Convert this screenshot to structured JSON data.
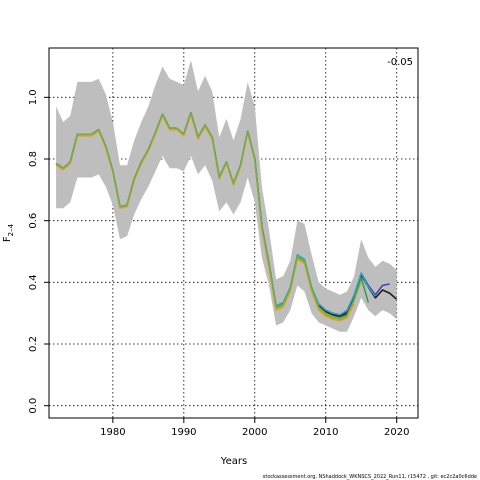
{
  "chart_data": {
    "type": "line",
    "title": "",
    "xlabel": "Years",
    "ylabel": "F",
    "ylabel_subscript": "2–4",
    "xlim": [
      1971,
      2023
    ],
    "ylim": [
      -0.04,
      1.16
    ],
    "grid": true,
    "x_ticks": [
      1980,
      1990,
      2000,
      2010,
      2020
    ],
    "x_tick_labels": [
      "1980",
      "1990",
      "2000",
      "2010",
      "2020"
    ],
    "y_ticks": [
      0.0,
      0.2,
      0.4,
      0.6,
      0.8,
      1.0
    ],
    "y_tick_labels": [
      "0.0",
      "0.2",
      "0.4",
      "0.6",
      "0.8",
      "1.0"
    ],
    "annotation": "-0.05",
    "footnote": "stockassessment.org, NShaddock_WKNSCS_2022_Run11, r15472 , git: ec2c2a0c6dde",
    "band_color": "#bebebe",
    "band": {
      "x": [
        1972,
        1973,
        1974,
        1975,
        1976,
        1977,
        1978,
        1979,
        1980,
        1981,
        1982,
        1983,
        1984,
        1985,
        1986,
        1987,
        1988,
        1989,
        1990,
        1991,
        1992,
        1993,
        1994,
        1995,
        1996,
        1997,
        1998,
        1999,
        2000,
        2001,
        2002,
        2003,
        2004,
        2005,
        2006,
        2007,
        2008,
        2009,
        2010,
        2011,
        2012,
        2013,
        2014,
        2015,
        2016,
        2017,
        2018,
        2019,
        2020
      ],
      "lower": [
        0.64,
        0.64,
        0.66,
        0.74,
        0.74,
        0.74,
        0.75,
        0.71,
        0.65,
        0.54,
        0.55,
        0.62,
        0.67,
        0.71,
        0.76,
        0.81,
        0.77,
        0.77,
        0.76,
        0.81,
        0.75,
        0.78,
        0.73,
        0.63,
        0.66,
        0.62,
        0.66,
        0.74,
        0.66,
        0.48,
        0.39,
        0.26,
        0.27,
        0.31,
        0.39,
        0.37,
        0.3,
        0.27,
        0.26,
        0.25,
        0.24,
        0.24,
        0.29,
        0.35,
        0.31,
        0.29,
        0.31,
        0.3,
        0.28
      ],
      "upper": [
        0.97,
        0.92,
        0.94,
        1.05,
        1.05,
        1.05,
        1.06,
        1.01,
        0.92,
        0.78,
        0.78,
        0.86,
        0.92,
        0.97,
        1.04,
        1.1,
        1.06,
        1.05,
        1.04,
        1.12,
        1.02,
        1.07,
        1.02,
        0.87,
        0.93,
        0.86,
        0.93,
        1.05,
        0.97,
        0.71,
        0.57,
        0.41,
        0.42,
        0.47,
        0.6,
        0.59,
        0.49,
        0.4,
        0.38,
        0.37,
        0.36,
        0.37,
        0.42,
        0.54,
        0.48,
        0.45,
        0.47,
        0.46,
        0.44
      ]
    },
    "series": [
      {
        "color": "#1f1f1f",
        "width": 1.6,
        "x": [
          1972,
          1973,
          1974,
          1975,
          1976,
          1977,
          1978,
          1979,
          1980,
          1981,
          1982,
          1983,
          1984,
          1985,
          1986,
          1987,
          1988,
          1989,
          1990,
          1991,
          1992,
          1993,
          1994,
          1995,
          1996,
          1997,
          1998,
          1999,
          2000,
          2001,
          2002,
          2003,
          2004,
          2005,
          2006,
          2007,
          2008,
          2009,
          2010,
          2011,
          2012,
          2013,
          2014,
          2015,
          2016,
          2017,
          2018,
          2019,
          2020
        ],
        "y": [
          0.785,
          0.77,
          0.79,
          0.88,
          0.88,
          0.88,
          0.895,
          0.84,
          0.76,
          0.645,
          0.65,
          0.735,
          0.79,
          0.83,
          0.885,
          0.945,
          0.9,
          0.9,
          0.88,
          0.95,
          0.87,
          0.91,
          0.87,
          0.74,
          0.79,
          0.72,
          0.78,
          0.89,
          0.8,
          0.58,
          0.46,
          0.32,
          0.33,
          0.38,
          0.485,
          0.47,
          0.38,
          0.325,
          0.305,
          0.295,
          0.29,
          0.3,
          0.35,
          0.425,
          0.385,
          0.35,
          0.375,
          0.365,
          0.345
        ]
      },
      {
        "color": "#3a3ab4",
        "width": 1.4,
        "x": [
          1972,
          1973,
          1974,
          1975,
          1976,
          1977,
          1978,
          1979,
          1980,
          1981,
          1982,
          1983,
          1984,
          1985,
          1986,
          1987,
          1988,
          1989,
          1990,
          1991,
          1992,
          1993,
          1994,
          1995,
          1996,
          1997,
          1998,
          1999,
          2000,
          2001,
          2002,
          2003,
          2004,
          2005,
          2006,
          2007,
          2008,
          2009,
          2010,
          2011,
          2012,
          2013,
          2014,
          2015,
          2016,
          2017,
          2018,
          2019
        ],
        "y": [
          0.785,
          0.77,
          0.79,
          0.88,
          0.88,
          0.88,
          0.895,
          0.84,
          0.76,
          0.645,
          0.65,
          0.735,
          0.79,
          0.83,
          0.885,
          0.945,
          0.9,
          0.9,
          0.88,
          0.95,
          0.87,
          0.91,
          0.87,
          0.74,
          0.79,
          0.72,
          0.78,
          0.89,
          0.8,
          0.58,
          0.46,
          0.32,
          0.33,
          0.38,
          0.485,
          0.47,
          0.38,
          0.33,
          0.31,
          0.3,
          0.295,
          0.305,
          0.355,
          0.43,
          0.39,
          0.36,
          0.39,
          0.395
        ]
      },
      {
        "color": "#2fa9c9",
        "width": 1.4,
        "x": [
          1972,
          1973,
          1974,
          1975,
          1976,
          1977,
          1978,
          1979,
          1980,
          1981,
          1982,
          1983,
          1984,
          1985,
          1986,
          1987,
          1988,
          1989,
          1990,
          1991,
          1992,
          1993,
          1994,
          1995,
          1996,
          1997,
          1998,
          1999,
          2000,
          2001,
          2002,
          2003,
          2004,
          2005,
          2006,
          2007,
          2008,
          2009,
          2010,
          2011,
          2012,
          2013,
          2014,
          2015,
          2016,
          2017
        ],
        "y": [
          0.785,
          0.77,
          0.79,
          0.88,
          0.88,
          0.88,
          0.895,
          0.84,
          0.76,
          0.645,
          0.65,
          0.735,
          0.79,
          0.83,
          0.885,
          0.945,
          0.9,
          0.9,
          0.88,
          0.95,
          0.87,
          0.91,
          0.87,
          0.74,
          0.79,
          0.72,
          0.78,
          0.89,
          0.8,
          0.58,
          0.46,
          0.325,
          0.335,
          0.385,
          0.49,
          0.475,
          0.385,
          0.33,
          0.31,
          0.3,
          0.295,
          0.31,
          0.36,
          0.43,
          0.385,
          0.355
        ]
      },
      {
        "color": "#2a9a4a",
        "width": 1.4,
        "x": [
          1972,
          1973,
          1974,
          1975,
          1976,
          1977,
          1978,
          1979,
          1980,
          1981,
          1982,
          1983,
          1984,
          1985,
          1986,
          1987,
          1988,
          1989,
          1990,
          1991,
          1992,
          1993,
          1994,
          1995,
          1996,
          1997,
          1998,
          1999,
          2000,
          2001,
          2002,
          2003,
          2004,
          2005,
          2006,
          2007,
          2008,
          2009,
          2010,
          2011,
          2012,
          2013,
          2014,
          2015,
          2016
        ],
        "y": [
          0.785,
          0.77,
          0.79,
          0.88,
          0.88,
          0.88,
          0.895,
          0.84,
          0.76,
          0.645,
          0.65,
          0.735,
          0.79,
          0.83,
          0.885,
          0.945,
          0.9,
          0.9,
          0.88,
          0.95,
          0.87,
          0.91,
          0.87,
          0.74,
          0.79,
          0.72,
          0.78,
          0.89,
          0.8,
          0.58,
          0.455,
          0.32,
          0.33,
          0.38,
          0.485,
          0.47,
          0.38,
          0.32,
          0.3,
          0.29,
          0.285,
          0.295,
          0.345,
          0.415,
          0.335
        ]
      },
      {
        "color": "#9aa83a",
        "width": 1.4,
        "x": [
          1972,
          1973,
          1974,
          1975,
          1976,
          1977,
          1978,
          1979,
          1980,
          1981,
          1982,
          1983,
          1984,
          1985,
          1986,
          1987,
          1988,
          1989,
          1990,
          1991,
          1992,
          1993,
          1994,
          1995,
          1996,
          1997,
          1998,
          1999,
          2000,
          2001,
          2002,
          2003,
          2004,
          2005,
          2006,
          2007,
          2008,
          2009,
          2010,
          2011,
          2012,
          2013,
          2014,
          2015
        ],
        "y": [
          0.785,
          0.77,
          0.79,
          0.88,
          0.88,
          0.88,
          0.895,
          0.84,
          0.76,
          0.645,
          0.65,
          0.735,
          0.79,
          0.83,
          0.885,
          0.945,
          0.9,
          0.9,
          0.88,
          0.95,
          0.87,
          0.91,
          0.87,
          0.74,
          0.79,
          0.72,
          0.78,
          0.89,
          0.8,
          0.575,
          0.45,
          0.315,
          0.325,
          0.375,
          0.48,
          0.465,
          0.375,
          0.315,
          0.295,
          0.285,
          0.28,
          0.29,
          0.34,
          0.405
        ]
      },
      {
        "color": "#e0a020",
        "width": 1.4,
        "x": [
          1972,
          1973,
          1974,
          1975,
          1976,
          1977,
          1978,
          1979,
          1980,
          1981,
          1982,
          1983,
          1984,
          1985,
          1986,
          1987,
          1988,
          1989,
          1990,
          1991,
          1992,
          1993,
          1994,
          1995,
          1996,
          1997,
          1998,
          1999,
          2000,
          2001,
          2002,
          2003,
          2004,
          2005,
          2006,
          2007,
          2008,
          2009,
          2010,
          2011,
          2012,
          2013,
          2014
        ],
        "y": [
          0.78,
          0.765,
          0.785,
          0.875,
          0.875,
          0.875,
          0.89,
          0.835,
          0.755,
          0.64,
          0.645,
          0.73,
          0.785,
          0.825,
          0.88,
          0.94,
          0.895,
          0.895,
          0.875,
          0.945,
          0.865,
          0.905,
          0.865,
          0.735,
          0.785,
          0.715,
          0.775,
          0.885,
          0.795,
          0.57,
          0.445,
          0.31,
          0.32,
          0.37,
          0.475,
          0.46,
          0.37,
          0.31,
          0.29,
          0.28,
          0.275,
          0.285,
          0.33
        ]
      },
      {
        "color": "#6ab04c",
        "width": 1.2,
        "x": [
          1972,
          1973,
          1974,
          1975,
          1976,
          1977,
          1978,
          1979,
          1980,
          1981,
          1982,
          1983,
          1984,
          1985,
          1986,
          1987,
          1988,
          1989,
          1990,
          1991,
          1992,
          1993,
          1994,
          1995,
          1996,
          1997,
          1998,
          1999,
          2000,
          2001,
          2002,
          2003,
          2004,
          2005,
          2006,
          2007,
          2008,
          2009,
          2010,
          2011,
          2012,
          2013
        ],
        "y": [
          0.785,
          0.77,
          0.79,
          0.88,
          0.88,
          0.88,
          0.895,
          0.84,
          0.76,
          0.645,
          0.65,
          0.735,
          0.79,
          0.83,
          0.885,
          0.945,
          0.9,
          0.9,
          0.88,
          0.95,
          0.87,
          0.91,
          0.87,
          0.74,
          0.79,
          0.72,
          0.78,
          0.89,
          0.8,
          0.58,
          0.46,
          0.32,
          0.33,
          0.38,
          0.485,
          0.47,
          0.38,
          0.32,
          0.3,
          0.29,
          0.285,
          0.29
        ]
      }
    ]
  }
}
